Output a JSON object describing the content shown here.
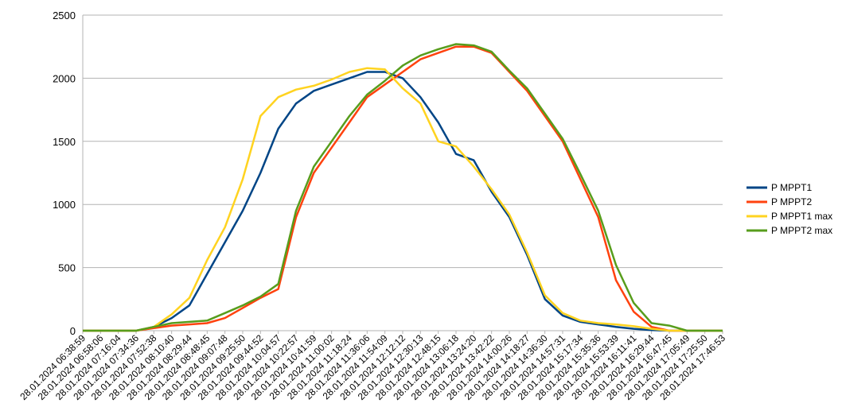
{
  "chart_data": {
    "type": "line",
    "title": "",
    "xlabel": "",
    "ylabel": "",
    "ylim": [
      0,
      2500
    ],
    "yticks": [
      0,
      500,
      1000,
      1500,
      2000,
      2500
    ],
    "grid": "horizontal",
    "legend_position": "right",
    "x": [
      "28.01.2024 06:38:59",
      "28.01.2024 06:58:06",
      "28.01.2024 07:16:04",
      "28.01.2024 07:34:36",
      "28.01.2024 07:52:38",
      "28.01.2024 08:10:40",
      "28.01.2024 08:29:44",
      "28.01.2024 08:48:45",
      "28.01.2024 09:07:48",
      "28.01.2024 09:25:50",
      "28.01.2024 09:44:52",
      "28.01.2024 10:04:57",
      "28.01.2024 10:22:57",
      "28.01.2024 10:41:59",
      "28.01.2024 11:00:02",
      "28.01.2024 11:18:24",
      "28.01.2024 11:36:06",
      "28.01.2024 11:54:09",
      "28.01.2024 12:12:12",
      "28.01.2024 12:30:13",
      "28.01.2024 12:48:15",
      "28.01.2024 13:06:18",
      "28.01.2024 13:24:20",
      "28.01.2024 13:42:22",
      "28.01.2024 14:00:26",
      "28.01.2024 14:18:27",
      "28.01.2024 14:36:30",
      "28.01.2024 14:57:31",
      "28.01.2024 15:17:34",
      "28.01.2024 15:35:36",
      "28.01.2024 15:53:39",
      "28.01.2024 16:11:41",
      "28.01.2024 16:29:44",
      "28.01.2024 16:47:45",
      "28.01.2024 17:05:49",
      "28.01.2024 17:25:50",
      "28.01.2024 17:46:53"
    ],
    "series": [
      {
        "name": "P MPPT1",
        "color": "#004586",
        "values": [
          0,
          0,
          0,
          0,
          30,
          100,
          200,
          450,
          700,
          950,
          1250,
          1600,
          1800,
          1900,
          1950,
          2000,
          2050,
          2050,
          2000,
          1850,
          1650,
          1400,
          1350,
          1100,
          900,
          600,
          250,
          120,
          70,
          50,
          30,
          15,
          5,
          0,
          0,
          0,
          0
        ]
      },
      {
        "name": "P MPPT2",
        "color": "#ff420e",
        "values": [
          0,
          0,
          0,
          0,
          20,
          40,
          50,
          60,
          100,
          180,
          260,
          330,
          900,
          1250,
          1450,
          1650,
          1850,
          1950,
          2050,
          2150,
          2200,
          2250,
          2250,
          2200,
          2050,
          1900,
          1700,
          1500,
          1200,
          900,
          400,
          150,
          30,
          0,
          0,
          0,
          0
        ]
      },
      {
        "name": "P MPPT1 max",
        "color": "#ffd320",
        "values": [
          0,
          0,
          0,
          0,
          30,
          130,
          260,
          560,
          820,
          1200,
          1700,
          1850,
          1910,
          1940,
          1990,
          2050,
          2080,
          2070,
          1920,
          1800,
          1500,
          1460,
          1300,
          1120,
          920,
          620,
          280,
          140,
          80,
          60,
          50,
          35,
          15,
          0,
          0,
          0,
          0
        ]
      },
      {
        "name": "P MPPT2 max",
        "color": "#579d1c",
        "values": [
          0,
          0,
          0,
          0,
          30,
          60,
          70,
          80,
          140,
          200,
          270,
          370,
          950,
          1300,
          1500,
          1700,
          1870,
          1980,
          2100,
          2180,
          2230,
          2270,
          2260,
          2210,
          2060,
          1920,
          1720,
          1520,
          1240,
          950,
          520,
          220,
          60,
          40,
          0,
          0,
          0
        ]
      }
    ]
  }
}
